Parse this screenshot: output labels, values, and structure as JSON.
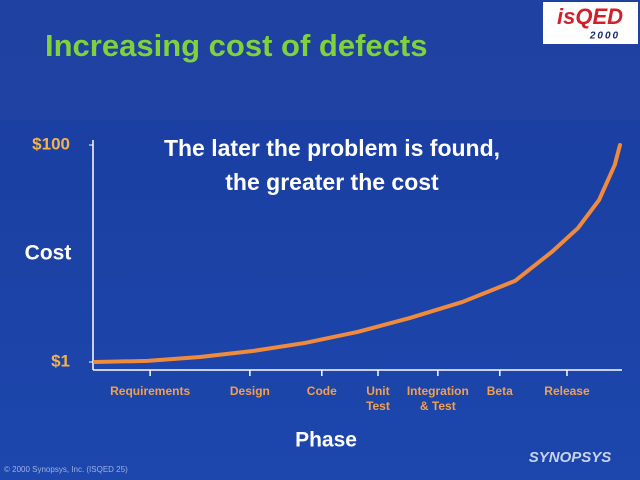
{
  "chart_data": {
    "type": "line",
    "title": "Increasing cost of defects",
    "annotation": [
      "The later the problem is found,",
      "the greater the cost"
    ],
    "ylabel": "Cost",
    "xlabel": "Phase",
    "x": [
      0,
      10,
      20,
      30,
      40,
      50,
      60,
      70,
      80,
      87,
      92,
      96,
      99,
      100
    ],
    "series": [
      {
        "name": "Cost",
        "color": "#f08a3c",
        "values": [
          1,
          1.5,
          3.3,
          6,
          9.7,
          14.7,
          21.1,
          28.4,
          38,
          51.2,
          62.1,
          74.9,
          90.9,
          100
        ]
      }
    ],
    "xlim": [
      0,
      100
    ],
    "xticks": [
      {
        "value": 10.5,
        "label": "Requirements"
      },
      {
        "value": 29.5,
        "label": "Design"
      },
      {
        "value": 43.2,
        "label": "Code"
      },
      {
        "value": 53.9,
        "label": "Unit Test"
      },
      {
        "value": 65.3,
        "label": "Integration & Test"
      },
      {
        "value": 77.1,
        "label": "Beta"
      },
      {
        "value": 89.9,
        "label": "Release"
      }
    ],
    "ylim": [
      1,
      100
    ],
    "yticks": [
      {
        "value": 1,
        "label": "$1"
      },
      {
        "value": 100,
        "label": "$100"
      }
    ],
    "grid": false
  },
  "slide": {
    "logo": "isQED",
    "logo_year": "2000",
    "footer": "© 2000 Synopsys, Inc. (ISQED 25)",
    "brand": "SYNOPSYS"
  }
}
